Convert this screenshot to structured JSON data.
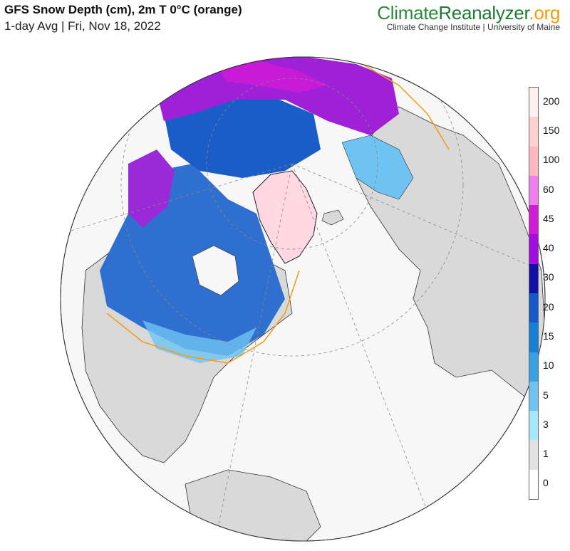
{
  "header": {
    "title": "GFS Snow Depth (cm), 2m T 0°C (orange)",
    "subtitle": "1-day Avg | Fri, Nov 18, 2022"
  },
  "brand": {
    "name_part1": "Climate",
    "name_part2": "Reanalyzer",
    "name_part3": ".org",
    "affiliation": "Climate Change Institute | University of Maine",
    "colors": {
      "climate": "#2b8a3e",
      "reanalyzer": "#1f7a33",
      "org": "#f39c12"
    }
  },
  "map": {
    "projection": "orthographic (North Pole view)",
    "freezing_line_color": "#f39c12",
    "land_color": "#d9d9d9",
    "ocean_color": "#f7f7f7"
  },
  "legend": {
    "labels": [
      "200",
      "150",
      "100",
      "60",
      "45",
      "40",
      "30",
      "20",
      "15",
      "10",
      "5",
      "3",
      "1",
      "0"
    ],
    "colors": [
      "#fff0f0",
      "#ffd0d0",
      "#ffb8c0",
      "#f07ef0",
      "#d21ad8",
      "#a20ee0",
      "#1010a8",
      "#1459c8",
      "#1480d8",
      "#3aa0e6",
      "#6fc3f2",
      "#a4e8fa",
      "#e2e2e2",
      "#ffffff"
    ]
  }
}
